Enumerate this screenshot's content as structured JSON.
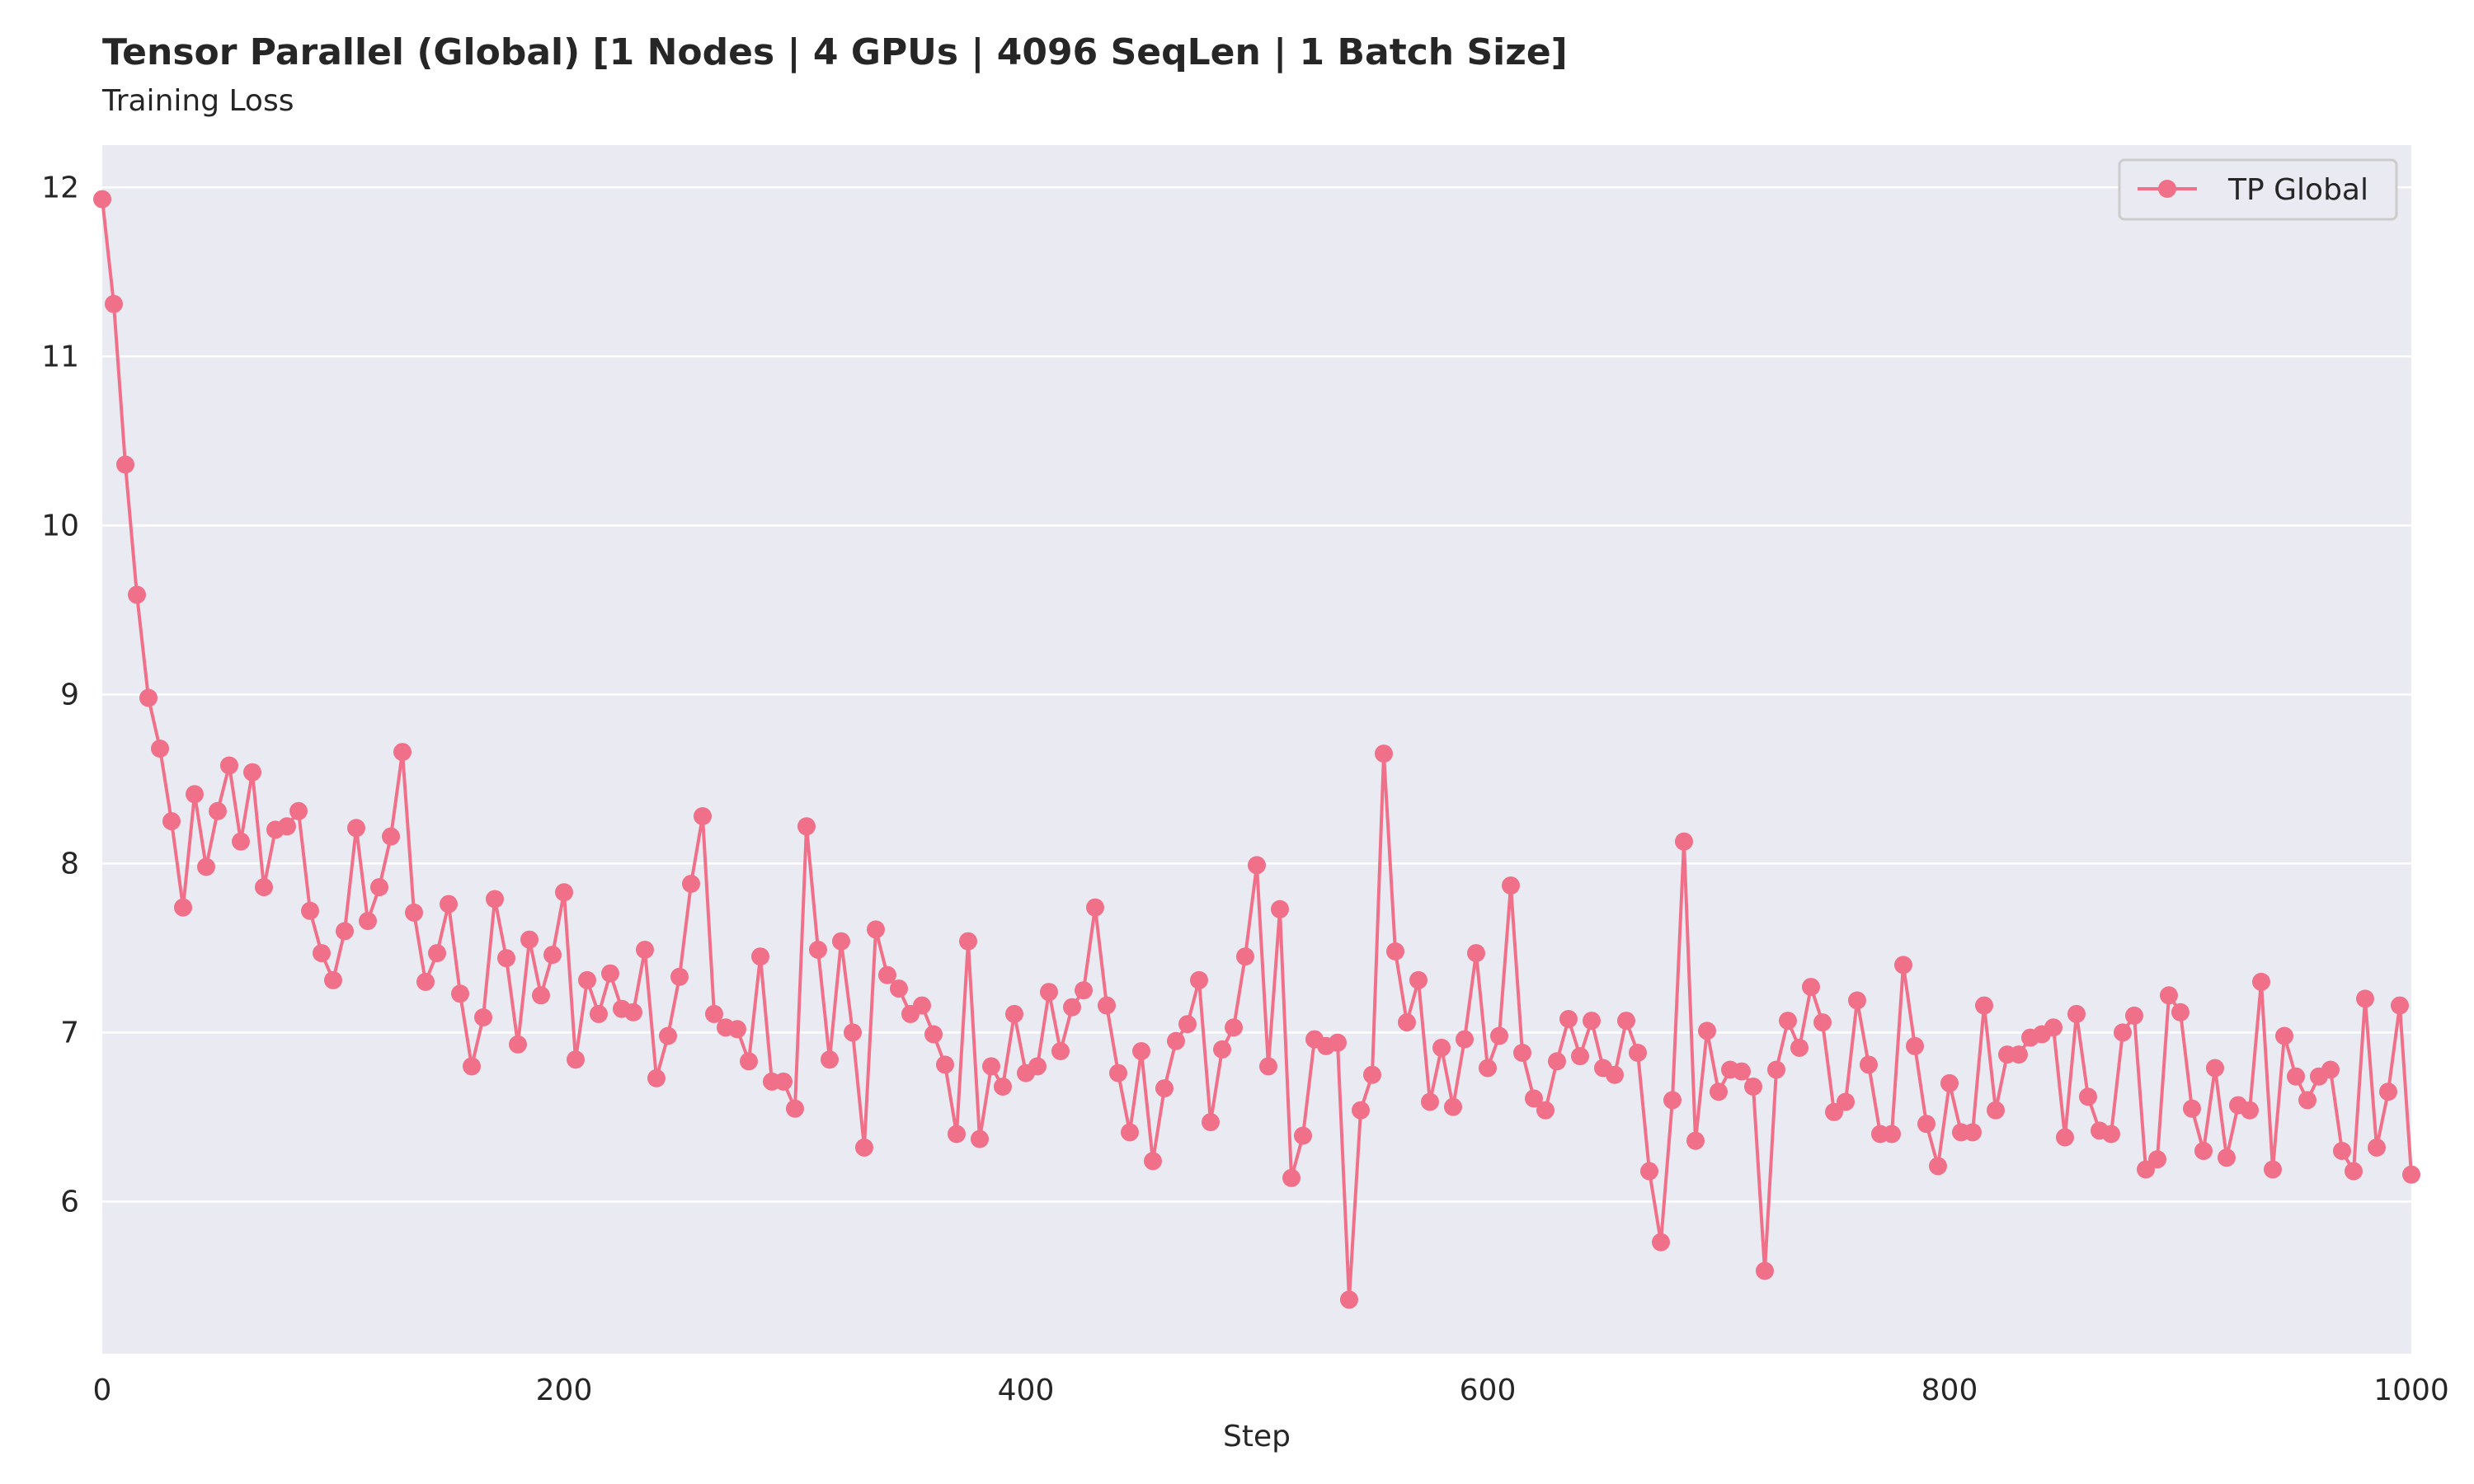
{
  "chart_data": {
    "type": "line",
    "title": "Tensor Parallel (Global) [1 Nodes | 4 GPUs | 4096 SeqLen | 1 Batch Size]",
    "subtitle": "Training Loss",
    "xlabel": "Step",
    "ylabel": "",
    "xlim": [
      0,
      1000
    ],
    "ylim": [
      5.1,
      12.25
    ],
    "x_ticks": [
      0,
      200,
      400,
      600,
      800,
      1000
    ],
    "y_ticks": [
      6,
      7,
      8,
      9,
      10,
      11,
      12
    ],
    "grid": "horizontal",
    "legend": {
      "position": "top-right",
      "entries": [
        "TP Global"
      ]
    },
    "series": [
      {
        "name": "TP Global",
        "color": "#f0708a",
        "marker": "circle",
        "x": [
          0,
          5,
          10,
          15,
          20,
          25,
          30,
          35,
          40,
          45,
          50,
          55,
          60,
          65,
          70,
          75,
          80,
          85,
          90,
          95,
          100,
          105,
          110,
          115,
          120,
          125,
          130,
          135,
          140,
          145,
          150,
          155,
          160,
          165,
          170,
          175,
          180,
          185,
          190,
          195,
          200,
          205,
          210,
          215,
          220,
          225,
          230,
          235,
          240,
          245,
          250,
          255,
          260,
          265,
          270,
          275,
          280,
          285,
          290,
          295,
          300,
          305,
          310,
          315,
          320,
          325,
          330,
          335,
          340,
          345,
          350,
          355,
          360,
          365,
          370,
          375,
          380,
          385,
          390,
          395,
          400,
          405,
          410,
          415,
          420,
          425,
          430,
          435,
          440,
          445,
          450,
          455,
          460,
          465,
          470,
          475,
          480,
          485,
          490,
          495,
          500,
          505,
          510,
          515,
          520,
          525,
          530,
          535,
          540,
          545,
          550,
          555,
          560,
          565,
          570,
          575,
          580,
          585,
          590,
          595,
          600,
          605,
          610,
          615,
          620,
          625,
          630,
          635,
          640,
          645,
          650,
          655,
          660,
          665,
          670,
          675,
          680,
          685,
          690,
          695,
          700,
          705,
          710,
          715,
          720,
          725,
          730,
          735,
          740,
          745,
          750,
          755,
          760,
          765,
          770,
          775,
          780,
          785,
          790,
          795,
          800,
          805,
          810,
          815,
          820,
          825,
          830,
          835,
          840,
          845,
          850,
          855,
          860,
          865,
          870,
          875,
          880,
          885,
          890,
          895,
          900,
          905,
          910,
          915,
          920,
          925,
          930,
          935,
          940,
          945,
          950,
          955,
          960,
          965,
          970,
          975,
          980,
          985,
          990,
          995,
          1000
        ],
        "y": [
          11.93,
          11.31,
          10.36,
          9.59,
          8.98,
          8.68,
          8.25,
          7.74,
          8.41,
          7.98,
          8.31,
          8.58,
          8.13,
          8.54,
          7.86,
          8.2,
          8.22,
          8.31,
          7.72,
          7.47,
          7.31,
          7.6,
          8.21,
          7.66,
          7.86,
          8.16,
          8.66,
          7.71,
          7.3,
          7.47,
          7.76,
          7.23,
          6.8,
          7.09,
          7.79,
          7.44,
          6.93,
          7.55,
          7.22,
          7.46,
          7.83,
          6.84,
          7.31,
          7.11,
          7.35,
          7.14,
          7.12,
          7.49,
          6.73,
          6.98,
          7.33,
          7.88,
          8.28,
          7.11,
          7.03,
          7.02,
          6.83,
          7.45,
          6.71,
          6.71,
          6.55,
          8.22,
          7.49,
          6.84,
          7.54,
          7.0,
          6.32,
          7.61,
          7.34,
          7.26,
          7.11,
          7.16,
          6.99,
          6.81,
          6.4,
          7.54,
          6.37,
          6.8,
          6.68,
          7.11,
          6.76,
          6.8,
          7.24,
          6.89,
          7.15,
          7.25,
          7.74,
          7.16,
          6.76,
          6.41,
          6.89,
          6.24,
          6.67,
          6.95,
          7.05,
          7.31,
          6.47,
          6.9,
          7.03,
          7.45,
          7.99,
          6.8,
          7.73,
          6.14,
          6.39,
          6.96,
          6.92,
          6.94,
          5.42,
          6.54,
          6.75,
          8.65,
          7.48,
          7.06,
          7.31,
          6.59,
          6.91,
          6.56,
          6.96,
          7.47,
          6.79,
          6.98,
          7.87,
          6.88,
          6.61,
          6.54,
          6.83,
          7.08,
          6.86,
          7.07,
          6.79,
          6.75,
          7.07,
          6.88,
          6.18,
          5.76,
          6.6,
          8.13,
          6.36,
          7.01,
          6.65,
          6.78,
          6.77,
          6.68,
          5.59,
          6.78,
          7.07,
          6.91,
          7.27,
          7.06,
          6.53,
          6.59,
          7.19,
          6.81,
          6.4,
          6.4,
          7.4,
          6.92,
          6.46,
          6.21,
          6.7,
          6.41,
          6.41,
          7.16,
          6.54,
          6.87,
          6.87,
          6.97,
          6.99,
          7.03,
          6.38,
          7.11,
          6.62,
          6.42,
          6.4,
          7.0,
          7.1,
          6.19,
          6.25,
          7.22,
          7.12,
          6.55,
          6.3,
          6.79,
          6.26,
          6.57,
          6.54,
          7.3,
          6.19,
          6.98,
          6.74,
          6.6,
          6.74,
          6.78,
          6.3,
          6.18,
          7.2,
          6.32,
          6.65,
          7.16,
          6.16
        ]
      }
    ]
  }
}
